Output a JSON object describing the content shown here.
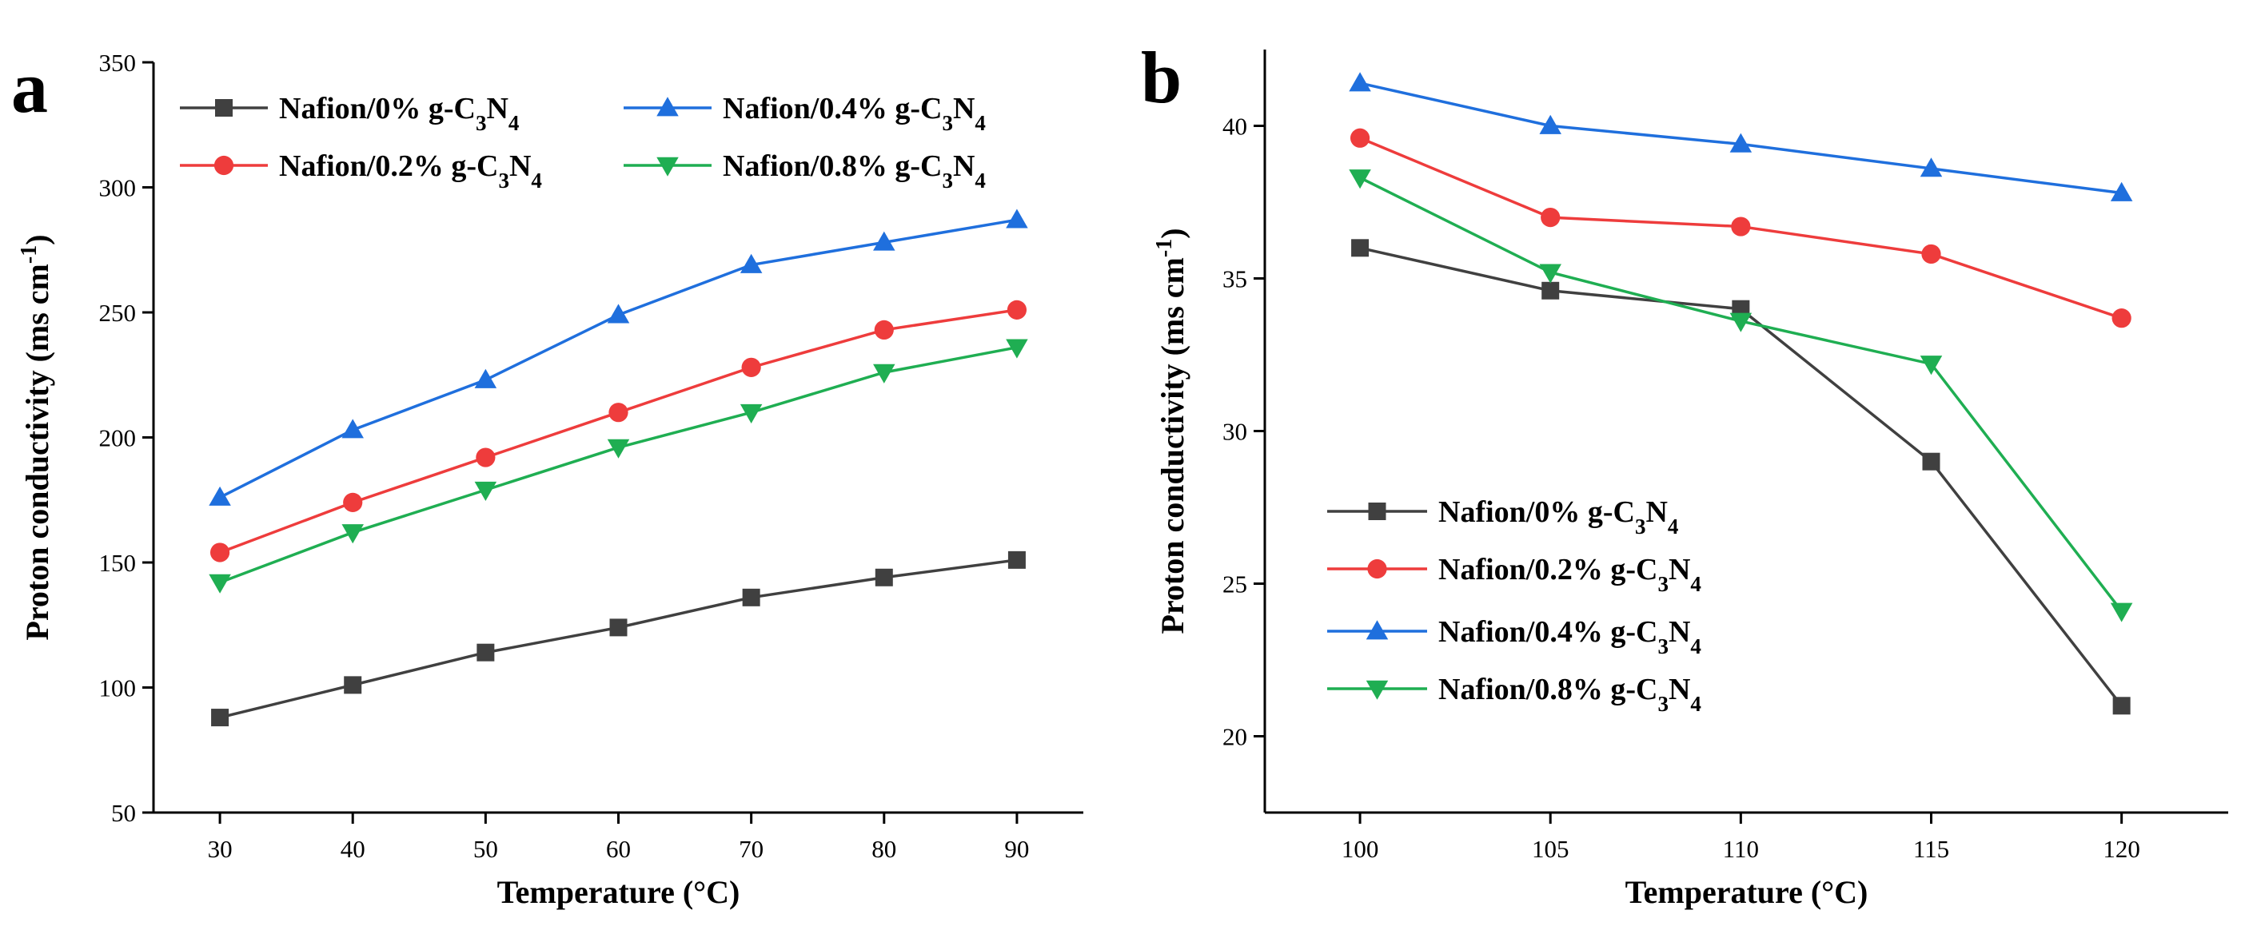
{
  "chart_data": [
    {
      "type": "line",
      "panel_label": "a",
      "xlabel": "Temperature (°C)",
      "ylabel": "Proton conductivity (ms cm⁻¹)",
      "x": [
        30,
        40,
        50,
        60,
        70,
        80,
        90
      ],
      "xticks": [
        30,
        40,
        50,
        60,
        70,
        80,
        90
      ],
      "xlim": [
        25,
        95
      ],
      "yticks": [
        50,
        100,
        150,
        200,
        250,
        300,
        350
      ],
      "ylim": [
        50,
        350
      ],
      "legend_position": "top",
      "series": [
        {
          "name": "Nafion/0% g-C₃N₄",
          "color": "#404040",
          "marker": "square",
          "values": [
            88,
            101,
            114,
            124,
            136,
            144,
            151
          ]
        },
        {
          "name": "Nafion/0.2% g-C₃N₄",
          "color": "#ee3c3c",
          "marker": "circle",
          "values": [
            154,
            174,
            192,
            210,
            228,
            243,
            251
          ]
        },
        {
          "name": "Nafion/0.4% g-C₃N₄",
          "color": "#1f6fdd",
          "marker": "triangle-up",
          "values": [
            176,
            203,
            223,
            249,
            269,
            278,
            287
          ]
        },
        {
          "name": "Nafion/0.8% g-C₃N₄",
          "color": "#1fae52",
          "marker": "triangle-down",
          "values": [
            142,
            162,
            179,
            196,
            210,
            226,
            236
          ]
        }
      ]
    },
    {
      "type": "line",
      "panel_label": "b",
      "xlabel": "Temperature (°C)",
      "ylabel": "Proton conductivity (ms cm⁻¹)",
      "x": [
        100,
        105,
        110,
        115,
        120
      ],
      "xticks": [
        100,
        105,
        110,
        115,
        120
      ],
      "xlim": [
        97.5,
        122.8
      ],
      "yticks": [
        20,
        25,
        30,
        35,
        40
      ],
      "ylim": [
        17.5,
        42.5
      ],
      "legend_position": "bottom-left",
      "series": [
        {
          "name": "Nafion/0% g-C₃N₄",
          "color": "#404040",
          "marker": "square",
          "values": [
            36.0,
            34.6,
            34.0,
            29.0,
            21.0
          ]
        },
        {
          "name": "Nafion/0.2% g-C₃N₄",
          "color": "#ee3c3c",
          "marker": "circle",
          "values": [
            39.6,
            37.0,
            36.7,
            35.8,
            33.7
          ]
        },
        {
          "name": "Nafion/0.4% g-C₃N₄",
          "color": "#1f6fdd",
          "marker": "triangle-up",
          "values": [
            41.4,
            40.0,
            39.4,
            38.6,
            37.8
          ]
        },
        {
          "name": "Nafion/0.8% g-C₃N₄",
          "color": "#1fae52",
          "marker": "triangle-down",
          "values": [
            38.3,
            35.2,
            33.6,
            32.2,
            24.1
          ]
        }
      ]
    }
  ]
}
